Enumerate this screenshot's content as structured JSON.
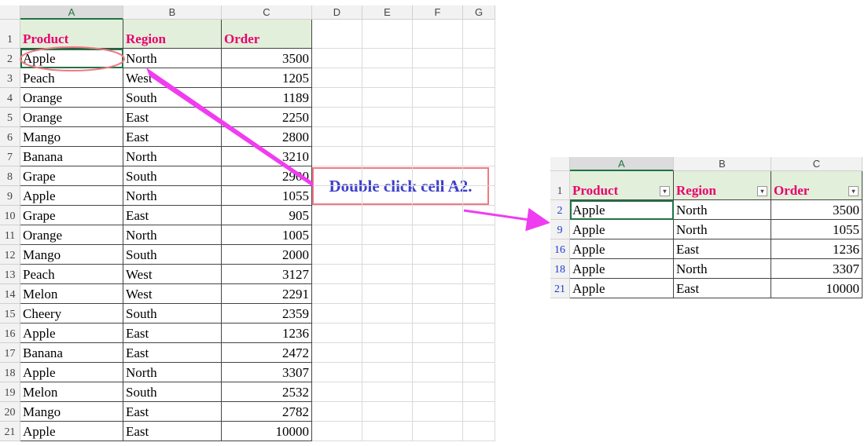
{
  "left_sheet": {
    "columns": [
      "A",
      "B",
      "C",
      "D",
      "E",
      "F",
      "G"
    ],
    "row_numbers": [
      1,
      2,
      3,
      4,
      5,
      6,
      7,
      8,
      9,
      10,
      11,
      12,
      13,
      14,
      15,
      16,
      17,
      18,
      19,
      20,
      21
    ],
    "header": [
      "Product",
      "Region",
      "Order"
    ],
    "rows": [
      [
        "Apple",
        "North",
        3500
      ],
      [
        "Peach",
        "West",
        1205
      ],
      [
        "Orange",
        "South",
        1189
      ],
      [
        "Orange",
        "East",
        2250
      ],
      [
        "Mango",
        "East",
        2800
      ],
      [
        "Banana",
        "North",
        3210
      ],
      [
        "Grape",
        "South",
        2900
      ],
      [
        "Apple",
        "North",
        1055
      ],
      [
        "Grape",
        "East",
        905
      ],
      [
        "Orange",
        "North",
        1005
      ],
      [
        "Mango",
        "South",
        2000
      ],
      [
        "Peach",
        "West",
        3127
      ],
      [
        "Melon",
        "West",
        2291
      ],
      [
        "Cheery",
        "South",
        2359
      ],
      [
        "Apple",
        "East",
        1236
      ],
      [
        "Banana",
        "East",
        2472
      ],
      [
        "Apple",
        "North",
        3307
      ],
      [
        "Melon",
        "South",
        2532
      ],
      [
        "Mango",
        "East",
        2782
      ],
      [
        "Apple",
        "East",
        10000
      ]
    ]
  },
  "callout": "Double click cell A2.",
  "right_sheet": {
    "columns": [
      "A",
      "B",
      "C"
    ],
    "row_numbers": [
      1,
      2,
      9,
      16,
      18,
      21
    ],
    "header": [
      "Product",
      "Region",
      "Order"
    ],
    "rows": [
      [
        "Apple",
        "North",
        3500
      ],
      [
        "Apple",
        "North",
        1055
      ],
      [
        "Apple",
        "East",
        1236
      ],
      [
        "Apple",
        "North",
        3307
      ],
      [
        "Apple",
        "East",
        10000
      ]
    ]
  }
}
